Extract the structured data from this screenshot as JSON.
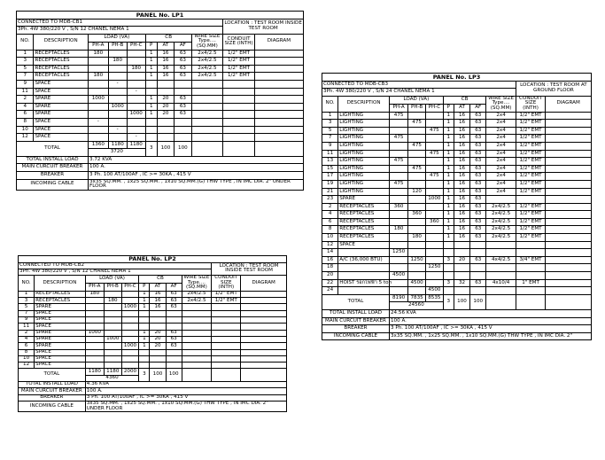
{
  "headers": {
    "no": "NO.",
    "description": "DESCRIPTION",
    "load": "LOAD (VA)",
    "pha": "PH-A",
    "phb": "PH-B",
    "phc": "PH-C",
    "cb": "CB",
    "p": "P",
    "at": "AT",
    "af": "AF",
    "wire": "WIRE SIZE Type.... (SQ.MM)",
    "conduit": "CONDUIT SIZE (INTH)",
    "diagram": "DIAGRAM",
    "total": "TOTAL"
  },
  "footer_labels": [
    "TOTAL INSTALL LOAD",
    "MAIN CURCUIT BREAKER",
    "BREAKER",
    "INCOMING CABLE"
  ],
  "panels": [
    {
      "title": "PANEL No. LP1",
      "connected": "CONNECTED TO MDB-CB1",
      "supply": "3Ph. 4W 380/220 V , S/N 12 CHANEL NEMA 1",
      "location": "LOCATION : TEST ROOM INSIDE TEST ROOM",
      "rows": [
        [
          "1",
          "RECEPTACLES",
          180,
          null,
          null,
          1,
          16,
          63,
          "2x4/2.5",
          "1/2\" EMT"
        ],
        [
          "3",
          "RECEPTACLES",
          null,
          180,
          null,
          1,
          16,
          63,
          "2x4/2.5",
          "1/2\" EMT"
        ],
        [
          "5",
          "RECEPTACLES",
          null,
          null,
          180,
          1,
          16,
          63,
          "2x4/2.5",
          "1/2\" EMT"
        ],
        [
          "7",
          "RECEPTACLES",
          180,
          null,
          null,
          1,
          16,
          63,
          "2x4/2.5",
          "1/2\" EMT"
        ],
        [
          "9",
          "SPACE",
          null,
          "-",
          null,
          null,
          null,
          null,
          null,
          null
        ],
        [
          "11",
          "SPACE",
          null,
          null,
          "-",
          null,
          null,
          null,
          null,
          null
        ],
        [
          "2",
          "SPARE",
          1000,
          null,
          null,
          1,
          20,
          63,
          null,
          null
        ],
        [
          "4",
          "SPARE",
          null,
          1000,
          null,
          1,
          20,
          63,
          null,
          null
        ],
        [
          "6",
          "SPARE",
          null,
          null,
          1000,
          1,
          20,
          63,
          null,
          null
        ],
        [
          "8",
          "SPACE",
          "-",
          null,
          null,
          null,
          null,
          null,
          null,
          null
        ],
        [
          "10",
          "SPACE",
          null,
          "-",
          null,
          null,
          null,
          null,
          null,
          null
        ],
        [
          "12",
          "SPACE",
          null,
          null,
          "-",
          null,
          null,
          null,
          null,
          null
        ]
      ],
      "totals": [
        1360,
        1180,
        1180
      ],
      "grand_total": 3720,
      "total_cb": [
        3,
        100,
        100
      ],
      "footer": [
        "3.72 KVA",
        "100 A.",
        "3 Ph. 100 AT/100AF , IC >= 30KA , 415 V",
        "3x35 SQ.MM. , 1x25 SQ.MM. , 1x10 SQ.MM.(G) THW TYPE , IN IMC DIA. 2\" UNDER FLOOR"
      ]
    },
    {
      "title": "PANEL No. LP2",
      "connected": "CONNECTED TO MDB-CB2",
      "supply": "3Ph. 4W 380/220 V , S/N 12 CHANEL NEMA 1",
      "location": "LOCATION : TEST ROOM INSIDE TEST ROOM",
      "rows": [
        [
          "1",
          "RECEPTACLES",
          180,
          null,
          null,
          1,
          16,
          63,
          "2x4/2.5",
          "1/2\" EMT"
        ],
        [
          "3",
          "RECEPTACLES",
          null,
          180,
          null,
          1,
          16,
          63,
          "2x4/2.5",
          "1/2\" EMT"
        ],
        [
          "5",
          "SPARE",
          null,
          null,
          1000,
          1,
          16,
          63,
          null,
          null
        ],
        [
          "7",
          "SPACE",
          null,
          null,
          null,
          null,
          null,
          null,
          null,
          null
        ],
        [
          "9",
          "SPACE",
          null,
          null,
          null,
          null,
          null,
          null,
          null,
          null
        ],
        [
          "11",
          "SPACE",
          null,
          null,
          null,
          null,
          null,
          null,
          null,
          null
        ],
        [
          "2",
          "SPARE",
          1000,
          null,
          null,
          1,
          20,
          63,
          null,
          null
        ],
        [
          "4",
          "SPARE",
          null,
          1000,
          null,
          1,
          20,
          63,
          null,
          null
        ],
        [
          "6",
          "SPARE",
          null,
          null,
          1000,
          1,
          20,
          63,
          null,
          null
        ],
        [
          "8",
          "SPACE",
          null,
          null,
          null,
          null,
          null,
          null,
          null,
          null
        ],
        [
          "10",
          "SPACE",
          null,
          null,
          null,
          null,
          null,
          null,
          null,
          null
        ],
        [
          "12",
          "SPACE",
          null,
          null,
          null,
          null,
          null,
          null,
          null,
          null
        ]
      ],
      "totals": [
        1180,
        1180,
        2000
      ],
      "grand_total": 4360,
      "total_cb": [
        3,
        100,
        100
      ],
      "footer": [
        "4.36 KVA",
        "100 A.",
        "3 Ph. 100 AT/100AF , IC >= 30KA , 415 V",
        "3x35 SQ.MM. , 1x25 SQ.MM. , 1x10 SQ.MM.(G) THW TYPE , IN IMC DIA. 2\" UNDER FLOOR"
      ]
    },
    {
      "title": "PANEL No. LP3",
      "connected": "CONNECTED TO MDB-CB3",
      "supply": "3Ph. 4W 380/220 V , S/N 24 CHANEL NEMA 1",
      "location": "LOCATION : TEST ROOM AT GROUND FLOOR",
      "rows": [
        [
          "1",
          "LIGHTING",
          475,
          null,
          null,
          1,
          16,
          63,
          "2x4",
          "1/2\" EMT"
        ],
        [
          "3",
          "LIGHTING",
          null,
          475,
          null,
          1,
          16,
          63,
          "2x4",
          "1/2\" EMT"
        ],
        [
          "5",
          "LIGHTING",
          null,
          null,
          475,
          1,
          16,
          63,
          "2x4",
          "1/2\" EMT"
        ],
        [
          "7",
          "LIGHTING",
          475,
          null,
          null,
          1,
          16,
          63,
          "2x4",
          "1/2\" EMT"
        ],
        [
          "9",
          "LIGHTING",
          null,
          475,
          null,
          1,
          16,
          63,
          "2x4",
          "1/2\" EMT"
        ],
        [
          "11",
          "LIGHTING",
          null,
          null,
          475,
          1,
          16,
          63,
          "2x4",
          "1/2\" EMT"
        ],
        [
          "13",
          "LIGHTING",
          475,
          null,
          null,
          1,
          16,
          63,
          "2x4",
          "1/2\" EMT"
        ],
        [
          "15",
          "LIGHTING",
          null,
          475,
          null,
          1,
          16,
          63,
          "2x4",
          "1/2\" EMT"
        ],
        [
          "17",
          "LIGHTING",
          null,
          null,
          475,
          1,
          16,
          63,
          "2x4",
          "1/2\" EMT"
        ],
        [
          "19",
          "LIGHTING",
          475,
          null,
          null,
          1,
          16,
          63,
          "2x4",
          "1/2\" EMT"
        ],
        [
          "21",
          "LIGHTING",
          null,
          120,
          null,
          1,
          16,
          63,
          "2x4",
          "1/2\" EMT"
        ],
        [
          "23",
          "SPARE",
          null,
          null,
          1000,
          1,
          16,
          63,
          null,
          null
        ],
        [
          "2",
          "RECEPTACLES",
          360,
          null,
          null,
          1,
          16,
          63,
          "2x4/2.5",
          "1/2\" EMT"
        ],
        [
          "4",
          "RECEPTACLES",
          null,
          360,
          null,
          1,
          16,
          63,
          "2x4/2.5",
          "1/2\" EMT"
        ],
        [
          "6",
          "RECEPTACLES",
          null,
          null,
          360,
          1,
          16,
          63,
          "2x4/2.5",
          "1/2\" EMT"
        ],
        [
          "8",
          "RECEPTACLES",
          180,
          null,
          null,
          1,
          16,
          63,
          "2x4/2.5",
          "1/2\" EMT"
        ],
        [
          "10",
          "RECEPTACLES",
          null,
          180,
          null,
          1,
          16,
          63,
          "2x4/2.5",
          "1/2\" EMT"
        ],
        [
          "12",
          "SPACE",
          null,
          null,
          null,
          null,
          null,
          null,
          null,
          null
        ],
        [
          "14",
          null,
          1250,
          null,
          null,
          null,
          null,
          null,
          null,
          null
        ],
        [
          "16",
          "A/C (36,000 BTU)",
          null,
          1250,
          null,
          3,
          20,
          63,
          "4x4/2.5",
          "3/4\" EMT"
        ],
        [
          "18",
          null,
          null,
          null,
          1250,
          null,
          null,
          null,
          null,
          null
        ],
        [
          "20",
          null,
          4500,
          null,
          null,
          null,
          null,
          null,
          null,
          null
        ],
        [
          "22",
          "HOIST รอกไฟฟ้า 5 ton",
          null,
          4500,
          null,
          3,
          32,
          63,
          "4x10/4",
          "1\" EMT"
        ],
        [
          "24",
          null,
          null,
          null,
          4500,
          null,
          null,
          null,
          null,
          null
        ]
      ],
      "totals": [
        8190,
        7835,
        8535
      ],
      "grand_total": 24560,
      "total_cb": [
        3,
        100,
        100
      ],
      "footer": [
        "24.56 KVA",
        "100 A.",
        "3 Ph. 100 AT/100AF , IC >= 30KA , 415 V",
        "3x35 SQ.MM. , 1x25 SQ.MM. , 1x10 SQ.MM.(G) THW TYPE , IN IMC DIA. 2\""
      ]
    }
  ]
}
